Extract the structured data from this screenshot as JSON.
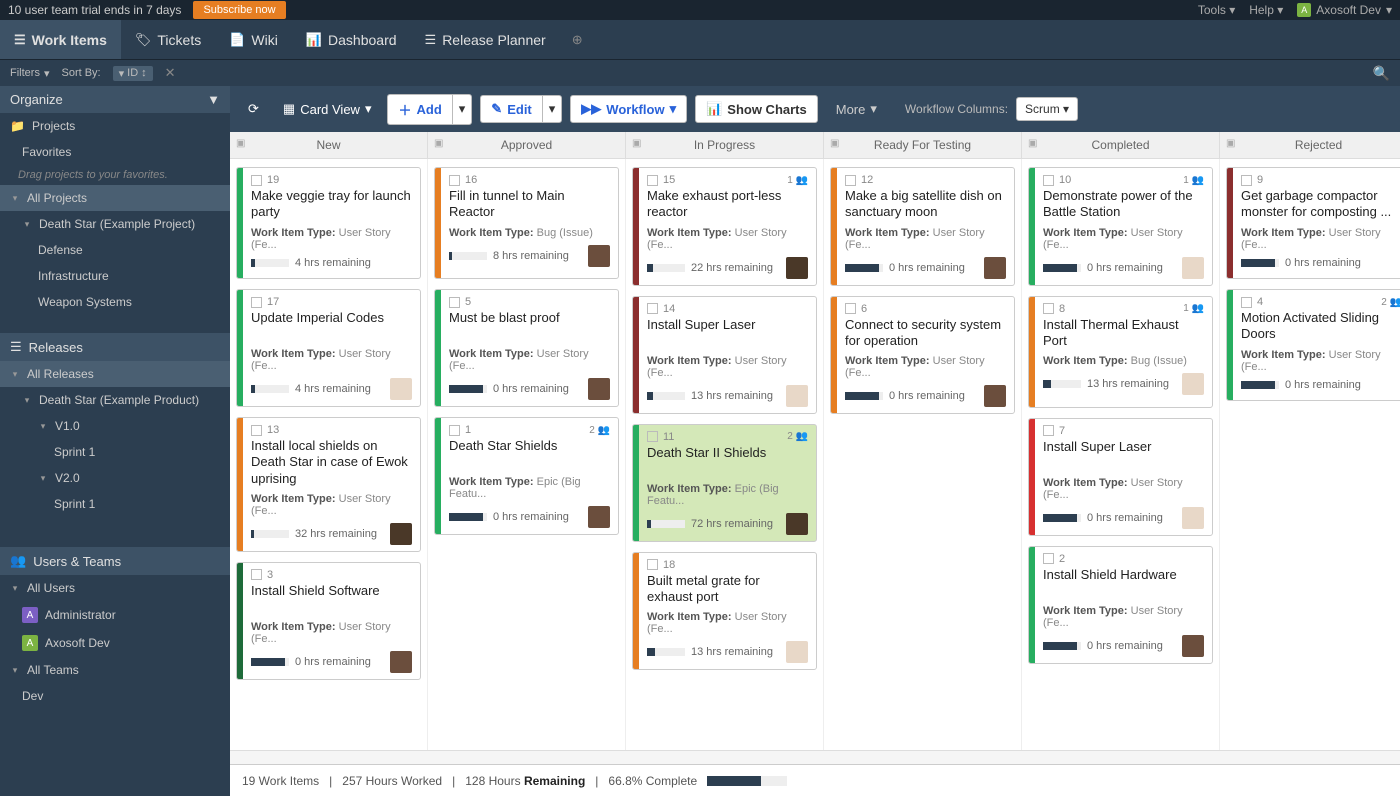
{
  "trial": {
    "msg": "10 user team trial ends in 7 days",
    "subscribe": "Subscribe now"
  },
  "topRight": {
    "tools": "Tools",
    "help": "Help",
    "userInitial": "A",
    "userName": "Axosoft Dev"
  },
  "nav": {
    "tabs": [
      {
        "label": "Work Items",
        "icon": "☰",
        "active": true
      },
      {
        "label": "Tickets",
        "icon": "🏷"
      },
      {
        "label": "Wiki",
        "icon": "📄"
      },
      {
        "label": "Dashboard",
        "icon": "📊"
      },
      {
        "label": "Release Planner",
        "icon": "☰"
      }
    ]
  },
  "filterRow": {
    "filters": "Filters",
    "sortBy": "Sort By:",
    "sortField": "ID"
  },
  "sidebar": {
    "organize": "Organize",
    "projects": {
      "header": "Projects",
      "favorites": "Favorites",
      "favHint": "Drag projects to your favorites.",
      "all": "All Projects",
      "example": "Death Star (Example Project)",
      "children": [
        "Defense",
        "Infrastructure",
        "Weapon Systems"
      ]
    },
    "releases": {
      "header": "Releases",
      "all": "All Releases",
      "product": "Death Star (Example Product)",
      "v1": "V1.0",
      "v1sprint": "Sprint 1",
      "v2": "V2.0",
      "v2sprint": "Sprint 1"
    },
    "users": {
      "header": "Users & Teams",
      "allUsers": "All Users",
      "admin": "Administrator",
      "dev": "Axosoft Dev",
      "allTeams": "All Teams",
      "teamDev": "Dev"
    }
  },
  "toolbar": {
    "cardView": "Card View",
    "add": "Add",
    "edit": "Edit",
    "workflow": "Workflow",
    "showCharts": "Show Charts",
    "more": "More",
    "wfColsLabel": "Workflow Columns:",
    "wfCols": "Scrum"
  },
  "columns": [
    "New",
    "Approved",
    "In Progress",
    "Ready For Testing",
    "Completed",
    "Rejected"
  ],
  "typeLabels": {
    "story": "User Story (Fe...",
    "bug": "Bug (Issue)",
    "epic": "Epic (Big Featu...",
    "storyShort": "User Story (Fe..."
  },
  "cards": {
    "c0": [
      {
        "id": "19",
        "title": "Make veggie tray for launch party",
        "type": "story",
        "rem": "4 hrs remaining",
        "fill": 10,
        "stripe": "c-green",
        "av": "",
        "badge": ""
      },
      {
        "id": "17",
        "title": "Update Imperial Codes",
        "type": "story",
        "rem": "4 hrs remaining",
        "fill": 10,
        "stripe": "c-green",
        "av": "a2",
        "badge": ""
      },
      {
        "id": "13",
        "title": "Install local shields on Death Star in case of Ewok uprising",
        "type": "story",
        "rem": "32 hrs remaining",
        "fill": 8,
        "stripe": "c-orange",
        "av": "a3",
        "badge": ""
      },
      {
        "id": "3",
        "title": "Install Shield Software",
        "type": "story",
        "rem": "0 hrs remaining",
        "fill": 90,
        "stripe": "c-dgreen",
        "av": "a1",
        "badge": ""
      }
    ],
    "c1": [
      {
        "id": "16",
        "title": "Fill in tunnel to Main Reactor",
        "type": "bug",
        "rem": "8 hrs remaining",
        "fill": 8,
        "stripe": "c-orange",
        "av": "a1",
        "badge": ""
      },
      {
        "id": "5",
        "title": "Must be blast proof",
        "type": "story",
        "rem": "0 hrs remaining",
        "fill": 90,
        "stripe": "c-green",
        "av": "a1",
        "badge": ""
      },
      {
        "id": "1",
        "title": "Death Star Shields",
        "type": "epic",
        "rem": "0 hrs remaining",
        "fill": 90,
        "stripe": "c-green",
        "av": "a1",
        "badge": "2"
      }
    ],
    "c2": [
      {
        "id": "15",
        "title": "Make exhaust port-less reactor",
        "type": "story",
        "rem": "22 hrs remaining",
        "fill": 15,
        "stripe": "c-dred",
        "av": "a3",
        "badge": "1"
      },
      {
        "id": "14",
        "title": "Install Super Laser",
        "type": "story",
        "rem": "13 hrs remaining",
        "fill": 15,
        "stripe": "c-dred",
        "av": "a2",
        "badge": ""
      },
      {
        "id": "11",
        "title": "Death Star II Shields",
        "type": "epic",
        "rem": "72 hrs remaining",
        "fill": 10,
        "stripe": "c-green",
        "av": "a3",
        "badge": "2",
        "hl": true
      },
      {
        "id": "18",
        "title": "Built metal grate for exhaust port",
        "type": "story",
        "rem": "13 hrs remaining",
        "fill": 20,
        "stripe": "c-orange",
        "av": "a2",
        "badge": ""
      }
    ],
    "c3": [
      {
        "id": "12",
        "title": "Make a big satellite dish on sanctuary moon",
        "type": "story",
        "rem": "0 hrs remaining",
        "fill": 90,
        "stripe": "c-orange",
        "av": "a1",
        "badge": ""
      },
      {
        "id": "6",
        "title": "Connect to security system for operation",
        "type": "story",
        "rem": "0 hrs remaining",
        "fill": 90,
        "stripe": "c-orange",
        "av": "a1",
        "badge": ""
      }
    ],
    "c4": [
      {
        "id": "10",
        "title": "Demonstrate power of the Battle Station",
        "type": "story",
        "rem": "0 hrs remaining",
        "fill": 90,
        "stripe": "c-green",
        "av": "a2",
        "badge": "1"
      },
      {
        "id": "8",
        "title": "Install Thermal Exhaust Port",
        "type": "bug",
        "rem": "13 hrs remaining",
        "fill": 20,
        "stripe": "c-orange",
        "av": "a2",
        "badge": "1"
      },
      {
        "id": "7",
        "title": "Install Super Laser",
        "type": "story",
        "rem": "0 hrs remaining",
        "fill": 90,
        "stripe": "c-red",
        "av": "a2",
        "badge": ""
      },
      {
        "id": "2",
        "title": "Install Shield Hardware",
        "type": "story",
        "rem": "0 hrs remaining",
        "fill": 90,
        "stripe": "c-green",
        "av": "a1",
        "badge": ""
      }
    ],
    "c5": [
      {
        "id": "9",
        "title": "Get garbage compactor monster for composting ...",
        "type": "storyShort",
        "rem": "0 hrs remaining",
        "fill": 90,
        "stripe": "c-dred",
        "av": "",
        "badge": ""
      },
      {
        "id": "4",
        "title": "Motion Activated Sliding Doors",
        "type": "storyShort",
        "rem": "0 hrs remaining",
        "fill": 90,
        "stripe": "c-green",
        "av": "",
        "badge": "2"
      }
    ]
  },
  "status": {
    "text1": "19 Work Items",
    "text2": "257 Hours Worked",
    "text3": "128 Hours",
    "text3b": "Remaining",
    "text4": "66.8% Complete",
    "pct": 66.8
  }
}
